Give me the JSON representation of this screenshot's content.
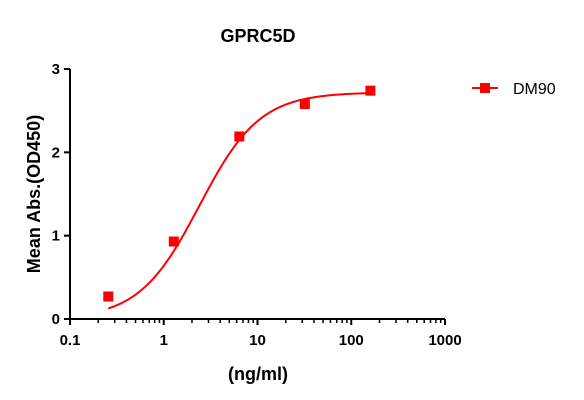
{
  "chart_data": {
    "type": "scatter",
    "title": "GPRC5D",
    "xlabel": "(ng/ml)",
    "ylabel": "Mean Abs.(OD450)",
    "x_scale": "log",
    "xlim": [
      0.1,
      1000
    ],
    "ylim": [
      0,
      3
    ],
    "x_ticks": [
      "0.1",
      "1",
      "10",
      "100",
      "1000"
    ],
    "y_ticks": [
      "0",
      "1",
      "2",
      "3"
    ],
    "grid": false,
    "legend_position": "top-right",
    "series": [
      {
        "name": "DM90",
        "color": "#ff0000",
        "marker": "square",
        "fit": "four-parameter logistic",
        "x": [
          0.256,
          1.28,
          6.4,
          32,
          160
        ],
        "y": [
          0.27,
          0.93,
          2.19,
          2.58,
          2.74
        ]
      }
    ]
  }
}
